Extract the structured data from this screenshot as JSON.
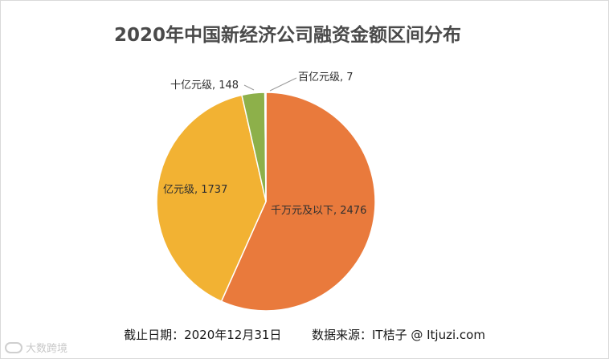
{
  "chart_data": {
    "type": "pie",
    "title": "2020年中国新经济公司融资金额区间分布",
    "slices": [
      {
        "label": "千万元及以下",
        "value": 2476,
        "color": "#E97A3C",
        "display": "千万元及以下, 2476"
      },
      {
        "label": "亿元级",
        "value": 1737,
        "color": "#F2B233",
        "display": "亿元级, 1737"
      },
      {
        "label": "十亿元级",
        "value": 148,
        "color": "#8DB04A",
        "display": "十亿元级, 148"
      },
      {
        "label": "百亿元级",
        "value": 7,
        "color": "#4A78BF",
        "display": "百亿元级, 7"
      }
    ],
    "legend": "none"
  },
  "footer": {
    "date": "截止日期：2020年12月31日",
    "source": "数据来源：IT桔子 @ Itjuzi.com"
  },
  "watermark": {
    "text": "大数跨境"
  }
}
